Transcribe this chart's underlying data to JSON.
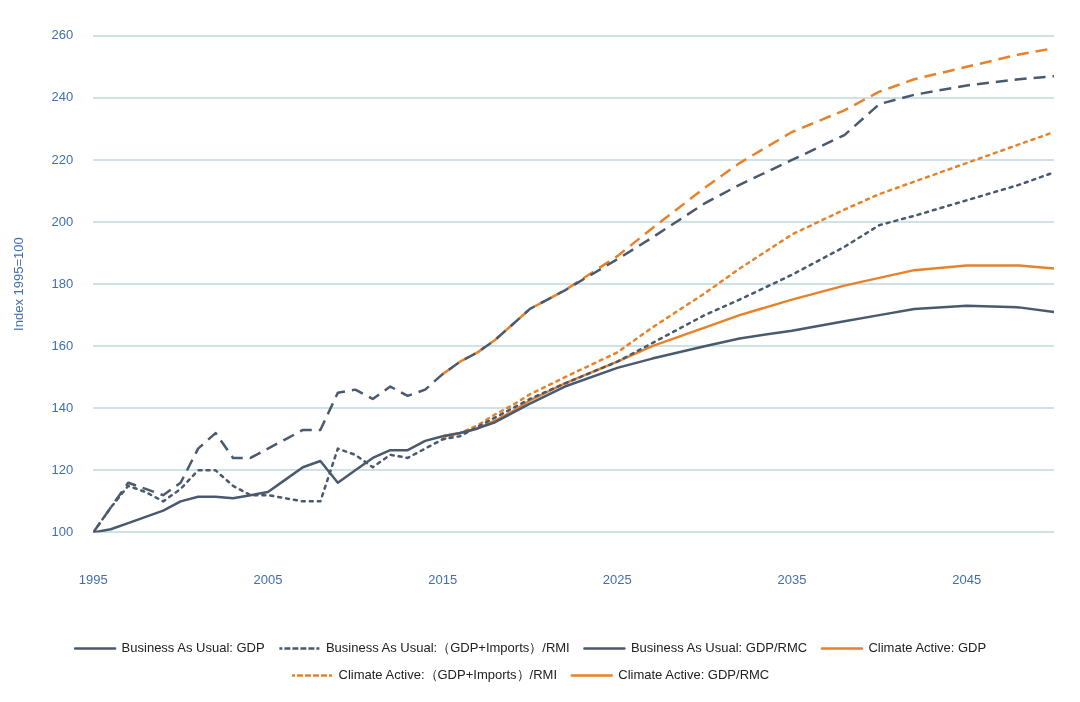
{
  "chart_data": {
    "type": "line",
    "ylabel": "Index 1995=100",
    "x": [
      1995,
      1996,
      1997,
      1998,
      1999,
      2000,
      2001,
      2002,
      2003,
      2004,
      2005,
      2006,
      2007,
      2008,
      2009,
      2010,
      2011,
      2012,
      2013,
      2014,
      2015,
      2016,
      2017,
      2018,
      2019,
      2020,
      2022,
      2025,
      2027,
      2030,
      2032,
      2035,
      2038,
      2040,
      2042,
      2045,
      2048,
      2050
    ],
    "xlim": [
      1995,
      2050
    ],
    "xticks": [
      1995,
      2005,
      2015,
      2025,
      2035,
      2045
    ],
    "ylim": [
      100,
      260
    ],
    "yticks": [
      100,
      120,
      140,
      160,
      180,
      200,
      220,
      240,
      260
    ],
    "grid": "y",
    "legend": "bottom",
    "marker": "none",
    "series": [
      {
        "name": "Business As Usual: GDP",
        "color": "#4a5a6e",
        "line_style": "solid",
        "values": [
          100,
          101,
          103,
          105,
          107,
          110,
          111.5,
          111.5,
          111,
          112,
          113,
          117,
          121,
          123,
          116,
          120,
          124,
          126.5,
          126.5,
          129.5,
          131,
          132,
          133.5,
          135.5,
          138.5,
          141.5,
          147,
          153,
          156,
          160,
          162.5,
          165,
          168,
          170,
          172,
          173,
          172.5,
          171
        ]
      },
      {
        "name": "Business As Usual:（GDP+Imports）/RMI",
        "color": "#4a5a6e",
        "line_style": "dotted",
        "values": [
          100,
          108,
          115,
          113,
          110,
          114,
          120,
          120,
          115,
          112,
          112,
          111,
          110,
          110,
          127,
          125,
          121,
          125,
          124,
          127,
          130,
          131,
          134,
          137,
          140,
          143,
          148,
          155,
          161,
          170,
          175,
          183,
          192,
          199,
          202,
          207,
          212,
          216
        ]
      },
      {
        "name": "Business As Usual: GDP/RMC",
        "color": "#4a5a6e",
        "line_style": "dashed",
        "values": [
          100,
          108,
          116,
          114,
          112,
          116,
          127,
          132,
          124,
          124,
          127,
          130,
          133,
          133,
          145,
          146,
          143,
          147,
          144,
          146,
          151,
          155,
          158,
          162,
          167,
          172,
          178,
          188,
          195,
          206,
          212,
          220,
          228,
          238,
          241,
          244,
          246,
          247
        ]
      },
      {
        "name": "Climate Active: GDP",
        "color": "#e8822a",
        "line_style": "solid",
        "values": [
          null,
          null,
          null,
          null,
          null,
          null,
          null,
          null,
          null,
          null,
          null,
          null,
          null,
          null,
          null,
          null,
          null,
          null,
          null,
          null,
          131,
          132,
          133.5,
          136,
          139,
          142.5,
          148,
          155,
          160,
          166,
          170,
          175,
          179.5,
          182,
          184.5,
          186,
          186,
          185
        ]
      },
      {
        "name": "Climate Active:（GDP+Imports）/RMI",
        "color": "#e8822a",
        "line_style": "dotted",
        "values": [
          null,
          null,
          null,
          null,
          null,
          null,
          null,
          null,
          null,
          null,
          null,
          null,
          null,
          null,
          null,
          null,
          null,
          null,
          null,
          null,
          130,
          132,
          134.5,
          138,
          141,
          144.5,
          150,
          158,
          166,
          177,
          185,
          196,
          204,
          209,
          213,
          219,
          225,
          229
        ]
      },
      {
        "name": "Climate Active: GDP/RMC",
        "color": "#e8822a",
        "line_style": "dashed",
        "values": [
          null,
          null,
          null,
          null,
          null,
          null,
          null,
          null,
          null,
          null,
          null,
          null,
          null,
          null,
          null,
          null,
          null,
          null,
          null,
          null,
          151,
          155,
          158,
          162,
          167,
          172,
          178,
          189,
          198,
          211,
          219,
          229,
          236,
          242,
          246,
          250,
          254,
          256
        ]
      }
    ]
  }
}
